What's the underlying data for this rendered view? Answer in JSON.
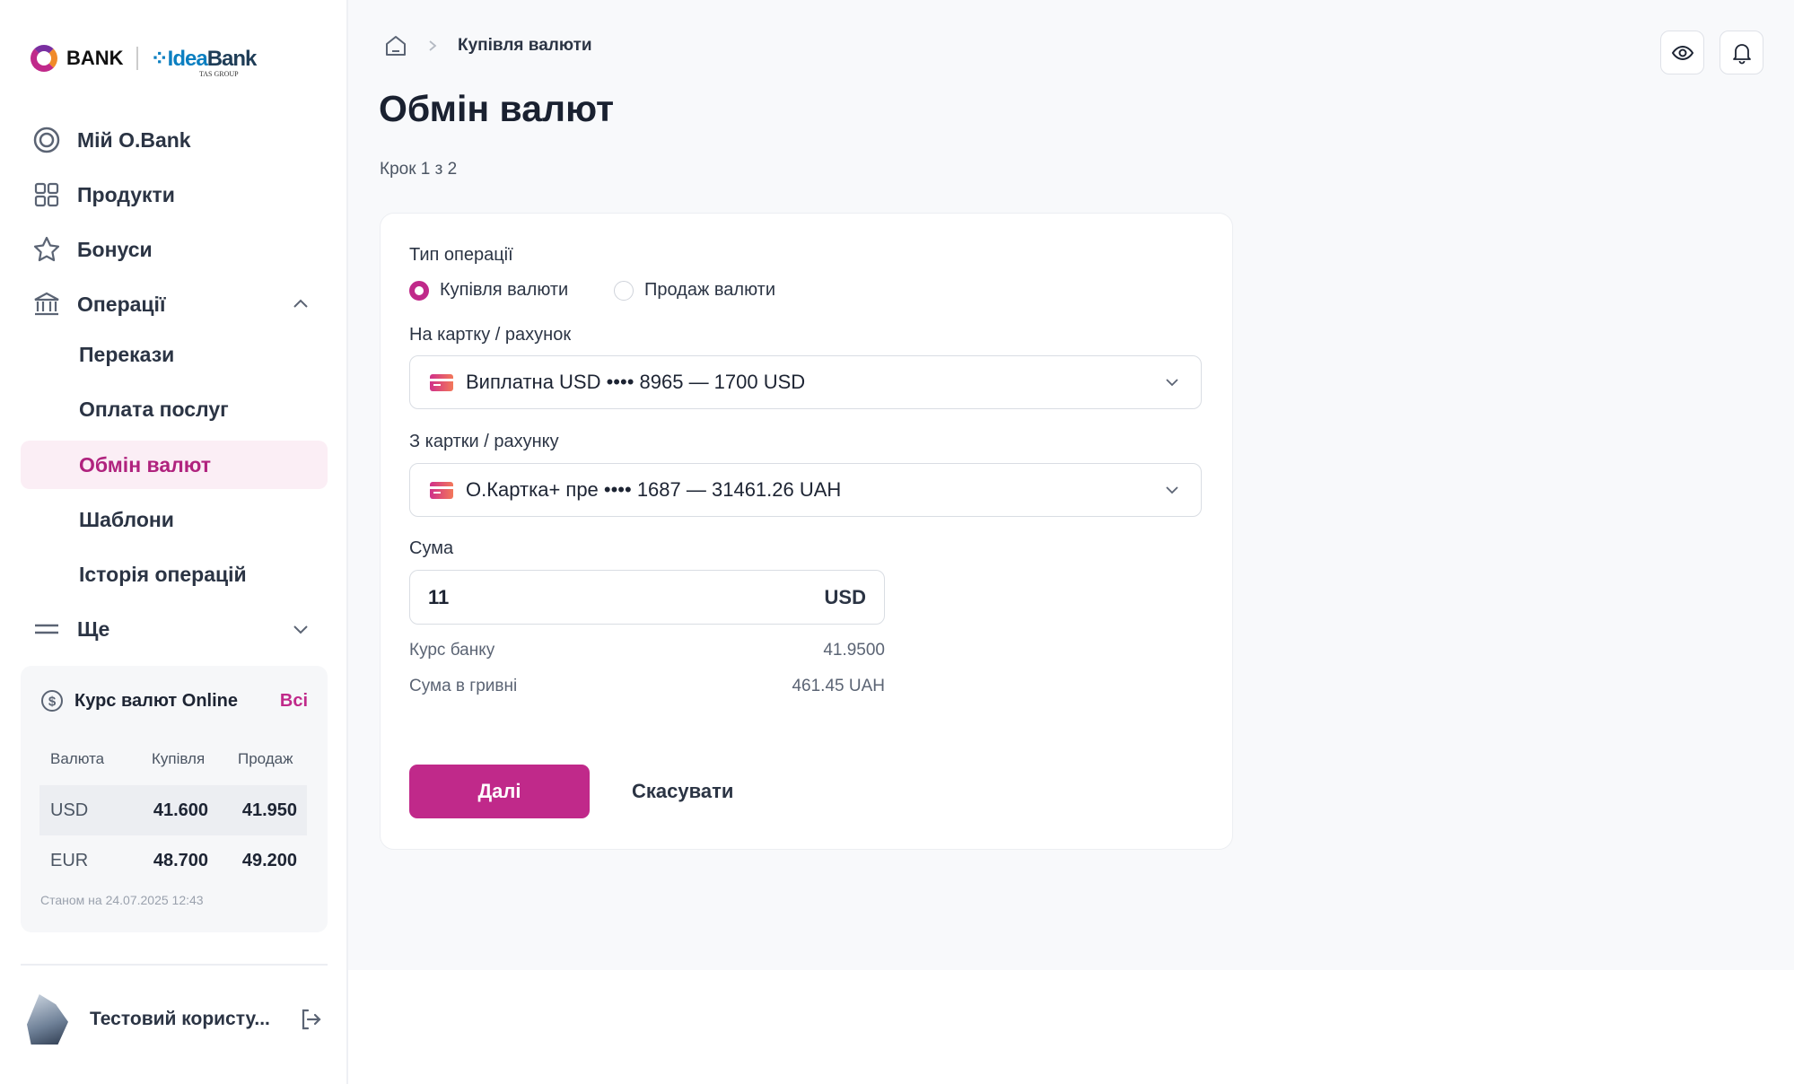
{
  "logo": {
    "obank": "BANK",
    "idea": "Idea",
    "bank": "Bank",
    "tas": "TAS GROUP"
  },
  "sidebar": {
    "items": [
      {
        "label": "Мій O.Bank",
        "icon": "target-icon"
      },
      {
        "label": "Продукти",
        "icon": "grid-icon"
      },
      {
        "label": "Бонуси",
        "icon": "star-icon"
      },
      {
        "label": "Операції",
        "icon": "bank-icon"
      }
    ],
    "subitems": [
      "Перекази",
      "Оплата послуг",
      "Обмін валют",
      "Шаблони",
      "Історія операцій"
    ],
    "more": "Ще",
    "rates": {
      "title": "Курс валют Online",
      "all": "Всі",
      "headers": [
        "Валюта",
        "Купівля",
        "Продаж"
      ],
      "rows": [
        [
          "USD",
          "41.600",
          "41.950"
        ],
        [
          "EUR",
          "48.700",
          "49.200"
        ]
      ],
      "stamp": "Станом на 24.07.2025 12:43"
    },
    "user": "Тестовий користу..."
  },
  "header": {
    "breadcrumb": "Купівля валюти",
    "title": "Обмін валют",
    "step": "Крок 1 з 2"
  },
  "form": {
    "op_label": "Тип операції",
    "op_buy": "Купівля валюти",
    "op_sell": "Продаж валюти",
    "to_label": "На картку / рахунок",
    "to_value": "Виплатна USD •••• 8965 — 1700 USD",
    "from_label": "З картки / рахунку",
    "from_value": "О.Картка+ пре •••• 1687 — 31461.26 UAH",
    "amount_label": "Сума",
    "amount": "11",
    "amount_currency": "USD",
    "rate_label": "Курс банку",
    "rate": "41.9500",
    "uah_label": "Сума в гривні",
    "uah": "461.45 UAH",
    "next": "Далі",
    "cancel": "Скасувати"
  },
  "colors": {
    "accent": "#c0298a"
  }
}
